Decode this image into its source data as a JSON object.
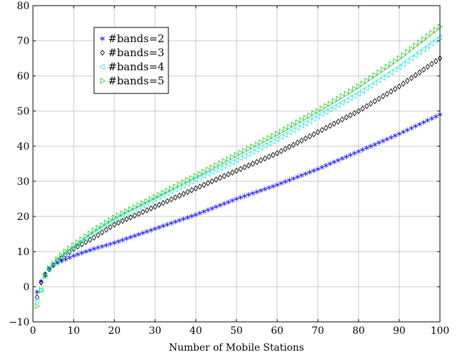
{
  "chart_data": {
    "type": "scatter",
    "title": "",
    "xlabel": "Number of Mobile Stations",
    "ylabel": "",
    "xlim": [
      0,
      100
    ],
    "ylim": [
      -10,
      80
    ],
    "xticks": [
      0,
      10,
      20,
      30,
      40,
      50,
      60,
      70,
      80,
      90,
      100
    ],
    "yticks": [
      -10,
      0,
      10,
      20,
      30,
      40,
      50,
      60,
      70,
      80
    ],
    "grid": true,
    "legend_position": "top-left",
    "x_range": [
      1,
      100
    ],
    "series": [
      {
        "name": "#bands=2",
        "marker": "asterisk",
        "color": "#1a1aff",
        "anchors": [
          [
            1,
            -1.5
          ],
          [
            2,
            1.5
          ],
          [
            3,
            3.5
          ],
          [
            4,
            5.2
          ],
          [
            5,
            6
          ],
          [
            6,
            6.8
          ],
          [
            7,
            7.3
          ],
          [
            8,
            7.8
          ],
          [
            10,
            8.8
          ],
          [
            15,
            10.8
          ],
          [
            20,
            12.5
          ],
          [
            30,
            16.5
          ],
          [
            40,
            20.5
          ],
          [
            50,
            25
          ],
          [
            60,
            29
          ],
          [
            70,
            33.5
          ],
          [
            80,
            38.5
          ],
          [
            90,
            43.5
          ],
          [
            100,
            49
          ]
        ]
      },
      {
        "name": "#bands=3",
        "marker": "diamond",
        "color": "#000000",
        "anchors": [
          [
            1,
            -3
          ],
          [
            2,
            1.2
          ],
          [
            3,
            3.5
          ],
          [
            4,
            5
          ],
          [
            5,
            6.2
          ],
          [
            6,
            7.4
          ],
          [
            8,
            9
          ],
          [
            10,
            10.8
          ],
          [
            15,
            14
          ],
          [
            20,
            17.7
          ],
          [
            30,
            22.8
          ],
          [
            40,
            28
          ],
          [
            50,
            33
          ],
          [
            60,
            38
          ],
          [
            70,
            44
          ],
          [
            80,
            50
          ],
          [
            90,
            57
          ],
          [
            100,
            65
          ]
        ]
      },
      {
        "name": "#bands=4",
        "marker": "triangle-left",
        "color": "#33e6e6",
        "anchors": [
          [
            1,
            -4
          ],
          [
            2,
            -1
          ],
          [
            3,
            3
          ],
          [
            4,
            5
          ],
          [
            5,
            6.4
          ],
          [
            6,
            7.6
          ],
          [
            8,
            9.5
          ],
          [
            10,
            11.2
          ],
          [
            15,
            15.5
          ],
          [
            20,
            19.2
          ],
          [
            30,
            25
          ],
          [
            40,
            30.5
          ],
          [
            50,
            36
          ],
          [
            60,
            42
          ],
          [
            70,
            48.5
          ],
          [
            80,
            55
          ],
          [
            90,
            62.5
          ],
          [
            100,
            71
          ]
        ]
      },
      {
        "name": "#bands=5",
        "marker": "triangle-right",
        "color": "#33cc33",
        "anchors": [
          [
            1,
            -5.5
          ],
          [
            2,
            -1
          ],
          [
            3,
            3
          ],
          [
            4,
            5.2
          ],
          [
            5,
            6.5
          ],
          [
            6,
            7.8
          ],
          [
            8,
            10
          ],
          [
            10,
            11.8
          ],
          [
            15,
            16
          ],
          [
            20,
            19.7
          ],
          [
            30,
            25.5
          ],
          [
            40,
            31.5
          ],
          [
            50,
            37.5
          ],
          [
            60,
            43.5
          ],
          [
            70,
            50
          ],
          [
            80,
            57
          ],
          [
            90,
            65
          ],
          [
            100,
            74
          ]
        ]
      }
    ]
  }
}
